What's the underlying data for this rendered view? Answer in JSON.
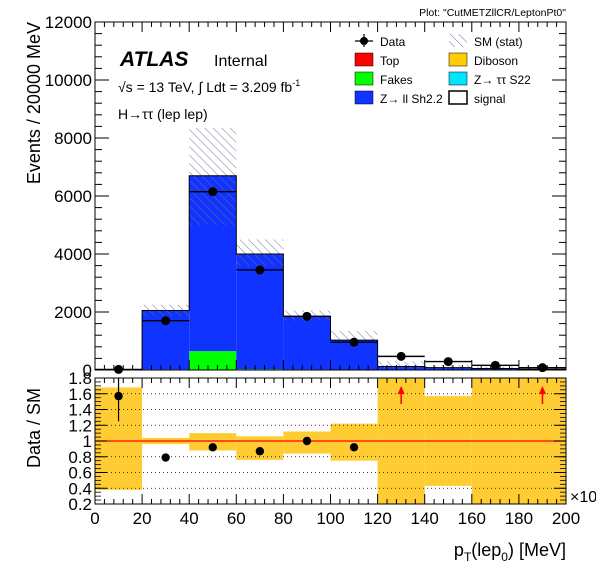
{
  "plot_label": "Plot: \"CutMETZllCR/LeptonPt0\"",
  "atlas": {
    "brand": "ATLAS",
    "status": "Internal"
  },
  "energy_label": "√s = 13 TeV, ∫ Ldt = 3.209 fb",
  "energy_sup": "-1",
  "process_label": "H→ττ (lep lep)",
  "x_multiplier": "×10",
  "legend": [
    {
      "key": "data",
      "label": "Data",
      "kind": "marker",
      "color": "#000000"
    },
    {
      "key": "sm",
      "label": "SM (stat)",
      "kind": "hatch",
      "color": "#6d6d8f"
    },
    {
      "key": "top",
      "label": "Top",
      "kind": "fill",
      "color": "#ff0000"
    },
    {
      "key": "diboson",
      "label": "Diboson",
      "kind": "fill",
      "color": "#ffcc00"
    },
    {
      "key": "fakes",
      "label": "Fakes",
      "kind": "fill",
      "color": "#00ff00"
    },
    {
      "key": "ztautau",
      "label": "Z→ ττ S22",
      "kind": "fill",
      "color": "#00e5ff"
    },
    {
      "key": "zll",
      "label": "Z→ ll Sh2.2",
      "kind": "fill",
      "color": "#1133ff"
    },
    {
      "key": "signal",
      "label": "signal",
      "kind": "outline",
      "color": "#000000"
    }
  ],
  "chart_data": [
    {
      "type": "bar",
      "stacked": true,
      "ylabel": "Events / 20000 MeV",
      "ylim": [
        0,
        12000
      ],
      "xlim": [
        0,
        200
      ],
      "x_ticks": [
        0,
        20,
        40,
        60,
        80,
        100,
        120,
        140,
        160,
        180,
        200
      ],
      "y_ticks": [
        0,
        2000,
        4000,
        6000,
        8000,
        10000,
        12000
      ],
      "bin_edges": [
        0,
        20,
        40,
        60,
        80,
        100,
        120,
        140,
        160,
        180,
        200
      ],
      "series": [
        {
          "name": "Fakes",
          "color": "#00ff00",
          "values": [
            0,
            20,
            650,
            30,
            20,
            10,
            0,
            0,
            0,
            0
          ]
        },
        {
          "name": "Z→ ll Sh2.2",
          "color": "#1133ff",
          "values": [
            10,
            2030,
            6050,
            3970,
            1830,
            1020,
            120,
            80,
            50,
            30
          ]
        }
      ],
      "sm_stat_band": [
        {
          "lo": 0,
          "hi": 40
        },
        {
          "lo": 1850,
          "hi": 2250
        },
        {
          "lo": 5000,
          "hi": 8350
        },
        {
          "lo": 3600,
          "hi": 4500
        },
        {
          "lo": 1700,
          "hi": 2050
        },
        {
          "lo": 950,
          "hi": 1350
        },
        {
          "lo": 60,
          "hi": 300
        },
        {
          "lo": 40,
          "hi": 180
        },
        {
          "lo": 20,
          "hi": 120
        },
        {
          "lo": 10,
          "hi": 80
        }
      ],
      "data_points": {
        "x": [
          10,
          30,
          50,
          70,
          90,
          110,
          130,
          150,
          170,
          190
        ],
        "y": [
          20,
          1700,
          6150,
          3450,
          1850,
          960,
          470,
          290,
          160,
          80
        ]
      }
    },
    {
      "type": "scatter",
      "ylabel": "Data / SM",
      "xlabel": "p_T(lep_0) [MeV]",
      "ylim": [
        0.2,
        1.8
      ],
      "xlim": [
        0,
        200
      ],
      "x_ticks": [
        0,
        20,
        40,
        60,
        80,
        100,
        120,
        140,
        160,
        180,
        200
      ],
      "y_ticks": [
        0.2,
        0.4,
        0.6,
        0.8,
        1,
        1.2,
        1.4,
        1.6,
        1.8
      ],
      "reference_line": 1,
      "uncertainty_band": [
        {
          "lo": 0.38,
          "hi": 1.68
        },
        {
          "lo": 0.96,
          "hi": 1.04
        },
        {
          "lo": 0.88,
          "hi": 1.1
        },
        {
          "lo": 0.76,
          "hi": 1.06
        },
        {
          "lo": 0.84,
          "hi": 1.12
        },
        {
          "lo": 0.75,
          "hi": 1.22
        },
        {
          "lo": 0.2,
          "hi": 1.8
        },
        {
          "lo": 0.43,
          "hi": 1.57
        },
        {
          "lo": 0.2,
          "hi": 1.8
        },
        {
          "lo": 0.2,
          "hi": 1.8
        }
      ],
      "ratio_points": {
        "x": [
          10,
          30,
          50,
          70,
          90,
          110
        ],
        "y": [
          1.57,
          0.79,
          0.92,
          0.87,
          1.0,
          0.92
        ],
        "y_err_low": [
          0.32,
          0.02,
          0.01,
          0.01,
          0.02,
          0.03
        ],
        "y_err_high": [
          0.32,
          0.02,
          0.01,
          0.01,
          0.02,
          0.03
        ]
      },
      "out_of_range_up_x": [
        130,
        190
      ]
    }
  ]
}
